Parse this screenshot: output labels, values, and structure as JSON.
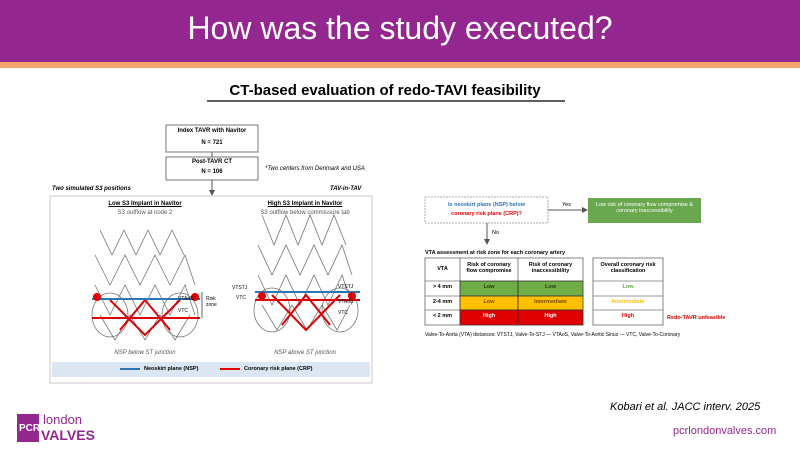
{
  "header": {
    "title": "How was the study executed?"
  },
  "subtitle": "CT-based evaluation of redo-TAVI feasibility",
  "left": {
    "boxes": [
      {
        "title": "Index TAVR with Navitor",
        "n": "N = 721"
      },
      {
        "title": "Post-TAVR CT",
        "n": "N = 106"
      }
    ],
    "note": "*Two centers from Denmark and USA",
    "left_label": "Two simulated S3 positions",
    "right_label": "TAV-in-TAV",
    "panels": [
      {
        "title": "Low S3 Implant in Navitor",
        "sub": "S3 outflow at node 2",
        "caption": "NSP below ST junction",
        "labels": [
          "VTAoS",
          "VTC",
          "Risk zone"
        ]
      },
      {
        "title": "High S3 Implant in Navitor",
        "sub": "S3 outflow below commissure tab",
        "caption": "NSP above ST junction",
        "labels": [
          "VTSTJ",
          "VTC",
          "VTSTJ",
          "VTAoS",
          "VTC"
        ]
      }
    ],
    "legend": [
      "Neoskirt plane (NSP)",
      "Coronary risk plane (CRP)"
    ]
  },
  "right": {
    "question": [
      "Is neoskirt plane (NSP) below",
      "coronary risk plane (CRP)?"
    ],
    "yes": "Yes",
    "no": "No",
    "low_box": "Low risk of coronary flow compromise & coronary inaccessibility",
    "table_title": "VTA assessment at risk zone for each coronary artery",
    "headers": [
      "VTA",
      "Risk of coronary flow compromise",
      "Risk of coronary inaccessibility"
    ],
    "rows": [
      [
        "> 4 mm",
        "Low",
        "Low"
      ],
      [
        "2-4 mm",
        "Low",
        "Intermediate"
      ],
      [
        "< 2 mm",
        "High",
        "High"
      ]
    ],
    "overall_header": "Overall coronary risk classification",
    "overall": [
      "Low",
      "Intermediate",
      "High"
    ],
    "unfeasible": "Redo-TAVR unfeasible",
    "footnote": "Valve-To-Aorta (VTA) distances: VTSTJ, Valve-To-STJ — VTAoS, Valve-To-Aortic Sinus — VTC, Valve-To-Coronary"
  },
  "citation": "Kobari et al. JACC interv. 2025",
  "logo": {
    "pcr": "PCR",
    "london": "london",
    "valves": "VALVES"
  },
  "url": "pcrlondonvalves.com"
}
